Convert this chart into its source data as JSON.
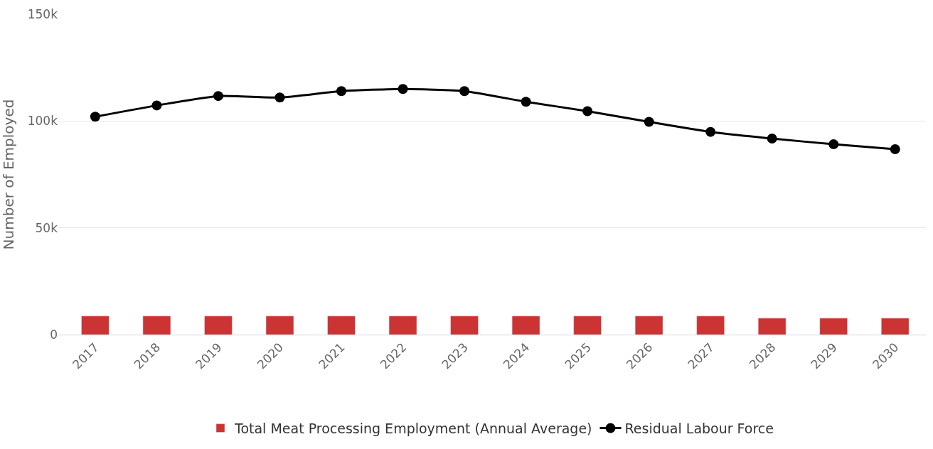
{
  "chart_data": {
    "type": "bar",
    "ylabel": "Number of Employed",
    "categories": [
      "2017",
      "2018",
      "2019",
      "2020",
      "2021",
      "2022",
      "2023",
      "2024",
      "2025",
      "2026",
      "2027",
      "2028",
      "2029",
      "2030"
    ],
    "series": [
      {
        "name": "Total Meat Processing Employment (Annual Average)",
        "color": "#cc3333",
        "values": [
          8700,
          8700,
          8700,
          8700,
          8700,
          8700,
          8700,
          8700,
          8700,
          8700,
          8700,
          7700,
          7700,
          7700
        ]
      },
      {
        "name": "Residual Labour Force",
        "type": "line",
        "color": "#000000",
        "marker": "circle",
        "values": [
          102000,
          107300,
          111700,
          111000,
          114000,
          115000,
          114000,
          109000,
          104600,
          99600,
          94900,
          91800,
          89100,
          86800
        ]
      }
    ],
    "ylim": [
      0,
      150000
    ],
    "yticks": [
      {
        "value": 0,
        "label": "0"
      },
      {
        "value": 50000,
        "label": "50k"
      },
      {
        "value": 100000,
        "label": "100k"
      },
      {
        "value": 150000,
        "label": "150k"
      }
    ],
    "grid": "y",
    "legend": "bottom"
  }
}
